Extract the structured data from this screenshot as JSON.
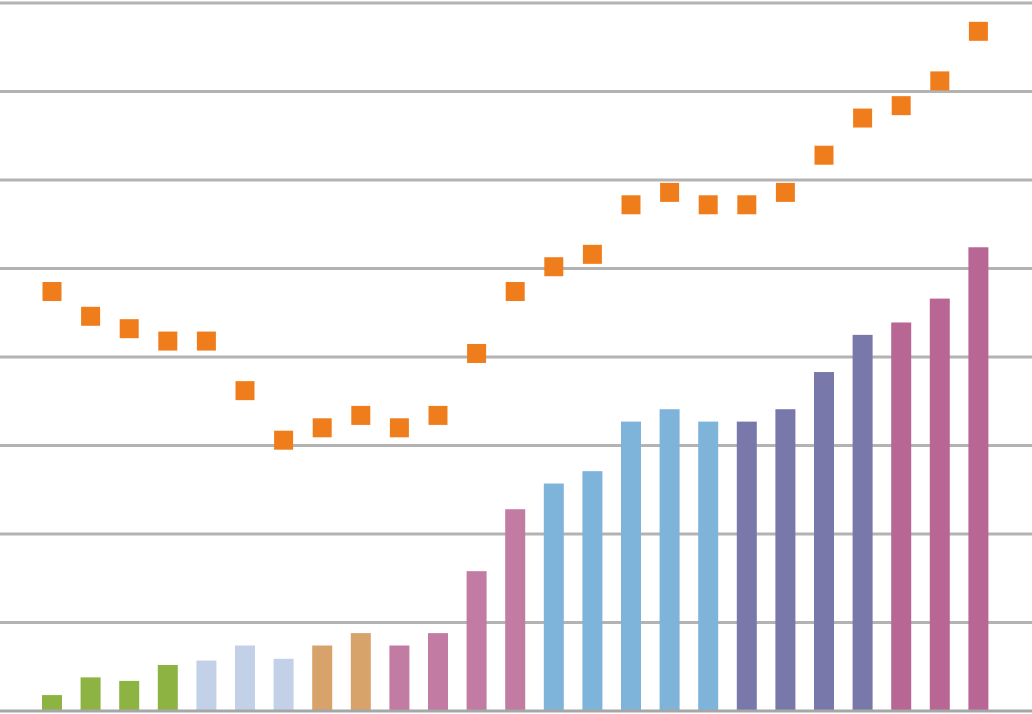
{
  "chart_data": {
    "type": "bar",
    "grid": true,
    "legend": "none",
    "ylim": [
      0,
      8
    ],
    "yticks": [
      0,
      1,
      2,
      3,
      4,
      5,
      6,
      7,
      8
    ],
    "series": [
      {
        "kind": "bar",
        "values": [
          0.18,
          0.38,
          0.34,
          0.52,
          0.57,
          0.74,
          0.59,
          0.74,
          0.88,
          0.74,
          0.88,
          1.58,
          2.28,
          2.57,
          2.71,
          3.27,
          3.41,
          3.27,
          3.27,
          3.41,
          3.83,
          4.25,
          4.39,
          4.66,
          5.24
        ],
        "colors": [
          "#8db443",
          "#8db443",
          "#8db443",
          "#8db443",
          "#c3d1e8",
          "#c3d1e8",
          "#c3d1e8",
          "#d8a26b",
          "#d8a26b",
          "#c27ba3",
          "#c27ba3",
          "#c27ba3",
          "#c27ba3",
          "#7eb3da",
          "#7eb3da",
          "#7eb3da",
          "#7eb3da",
          "#7eb3da",
          "#7978ab",
          "#7978ab",
          "#7978ab",
          "#7978ab",
          "#b86795",
          "#b86795",
          "#b86795"
        ]
      },
      {
        "kind": "scatter",
        "color": "#f07d1c",
        "values": [
          4.74,
          4.46,
          4.32,
          4.18,
          4.18,
          3.62,
          3.06,
          3.2,
          3.34,
          3.2,
          3.34,
          4.04,
          4.74,
          5.02,
          5.16,
          5.72,
          5.86,
          5.72,
          5.72,
          5.86,
          6.28,
          6.7,
          6.84,
          7.12,
          7.68
        ]
      }
    ]
  }
}
